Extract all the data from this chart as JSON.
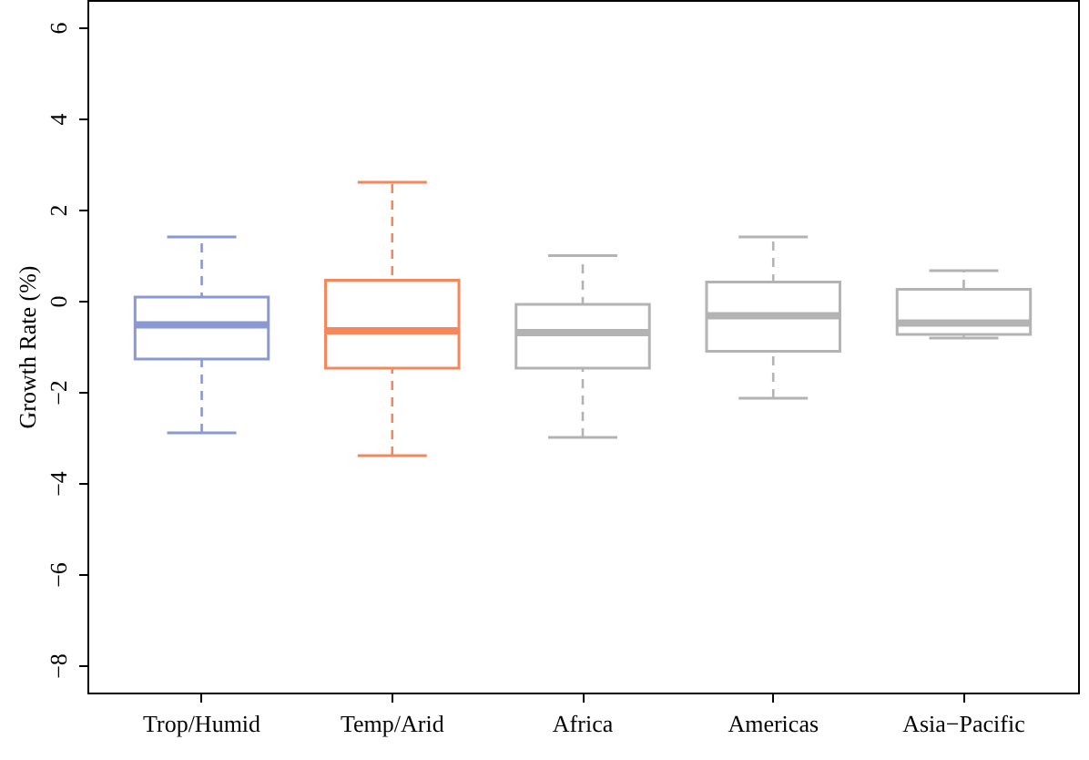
{
  "chart_data": {
    "type": "box",
    "ylabel": "Growth Rate (%)",
    "categories": [
      "Trop/Humid",
      "Temp/Arid",
      "Africa",
      "Americas",
      "Asia−Pacific"
    ],
    "colors": [
      "#8a98d4",
      "#f7875a",
      "#b3b3b3",
      "#b3b3b3",
      "#b3b3b3"
    ],
    "boxes": [
      {
        "low": -2.9,
        "q1": -1.28,
        "median": -0.53,
        "q3": 0.08,
        "high": 1.4
      },
      {
        "low": -3.4,
        "q1": -1.48,
        "median": -0.66,
        "q3": 0.45,
        "high": 2.6
      },
      {
        "low": -3.0,
        "q1": -1.48,
        "median": -0.7,
        "q3": -0.08,
        "high": 0.99
      },
      {
        "low": -2.14,
        "q1": -1.11,
        "median": -0.33,
        "q3": 0.41,
        "high": 1.4
      },
      {
        "low": -0.82,
        "q1": -0.74,
        "median": -0.49,
        "q3": 0.25,
        "high": 0.66
      }
    ],
    "ylim": [
      -8.6,
      6.6
    ],
    "yticks": [
      -8,
      -6,
      -4,
      -2,
      0,
      2,
      4,
      6
    ],
    "grid": false
  }
}
